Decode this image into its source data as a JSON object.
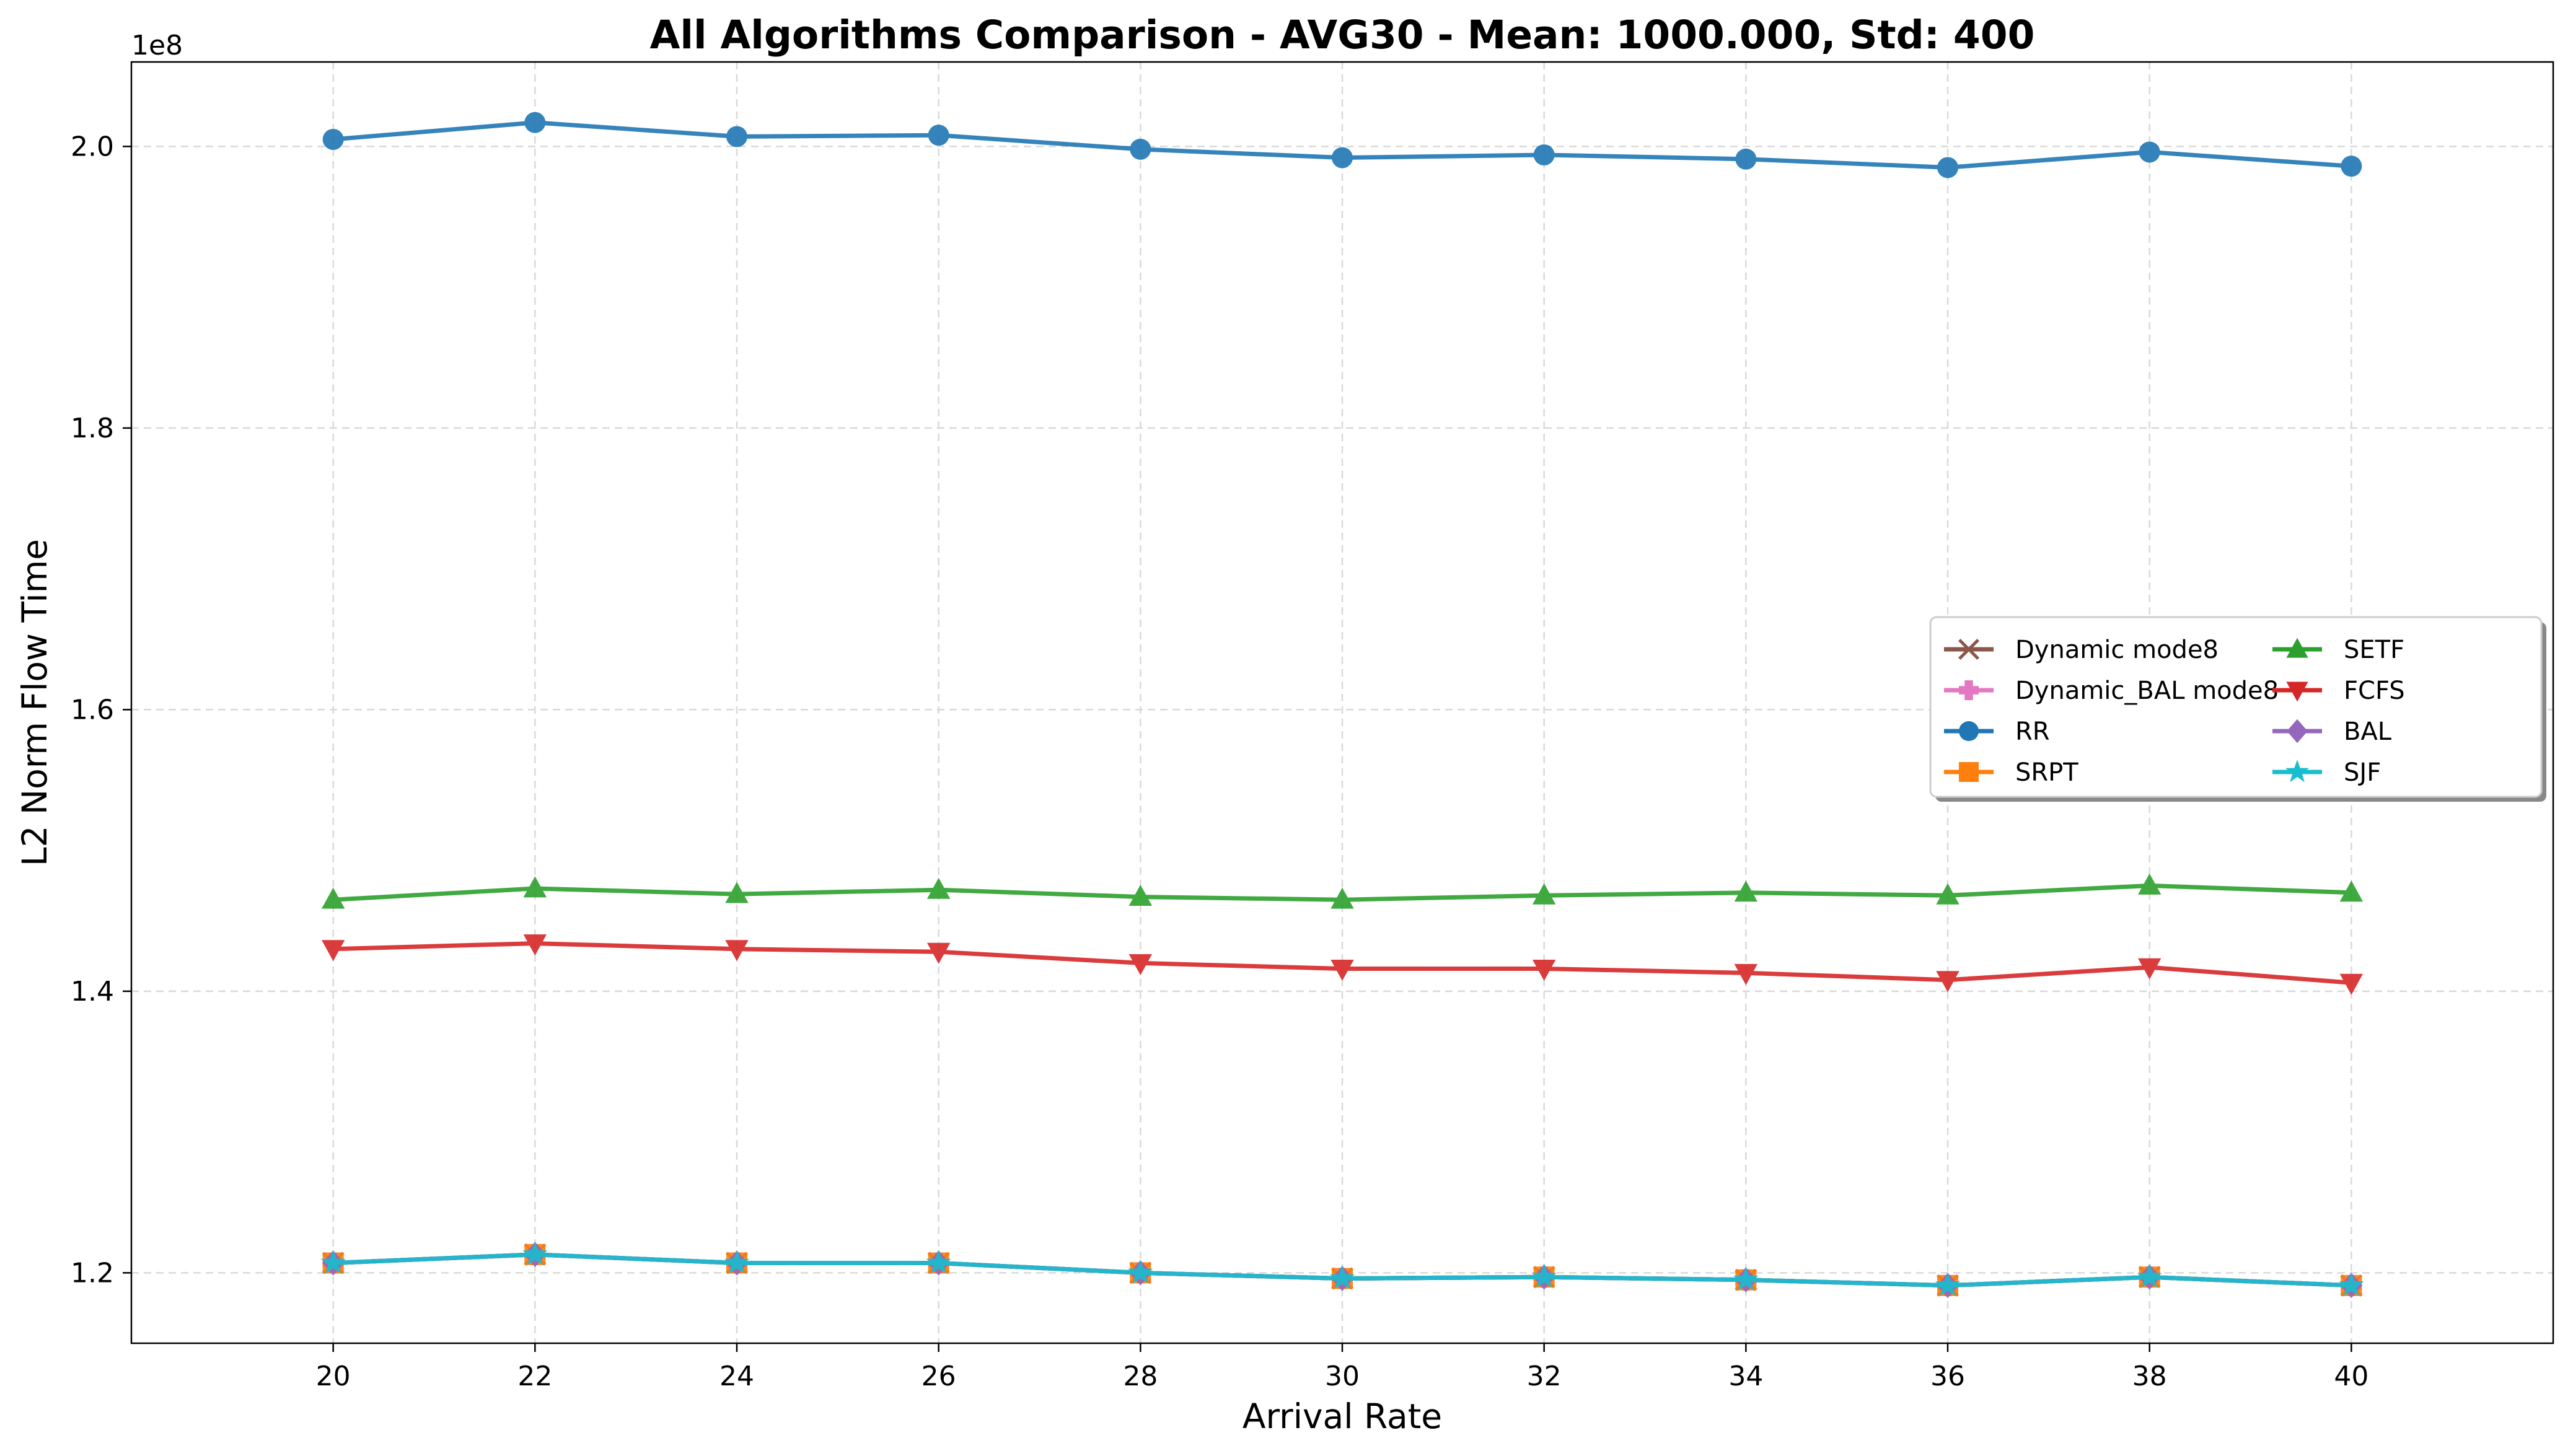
{
  "chart_data": {
    "type": "line",
    "title": "All Algorithms Comparison - AVG30 - Mean: 1000.000, Std: 400",
    "xlabel": "Arrival Rate",
    "ylabel": "L2 Norm Flow Time",
    "y_offset_label": "1e8",
    "x": [
      20,
      22,
      24,
      26,
      28,
      30,
      32,
      34,
      36,
      38,
      40
    ],
    "x_ticks": [
      "20",
      "22",
      "24",
      "26",
      "28",
      "30",
      "32",
      "34",
      "36",
      "38",
      "40"
    ],
    "xlim": [
      18,
      42
    ],
    "y_ticks": [
      1.2,
      1.4,
      1.6,
      1.8,
      2.0
    ],
    "y_tick_labels": [
      "1.2",
      "1.4",
      "1.6",
      "1.8",
      "2.0"
    ],
    "ylim": [
      1.15,
      2.06
    ],
    "y_scale_note": "values in units of 1e8",
    "grid": true,
    "legend_position": "center-right",
    "legend_columns": 2,
    "series": [
      {
        "name": "Dynamic mode8",
        "color": "#8c564b",
        "marker": "x",
        "values": [
          1.207,
          1.213,
          1.207,
          1.207,
          1.2,
          1.196,
          1.197,
          1.195,
          1.191,
          1.197,
          1.191
        ]
      },
      {
        "name": "Dynamic_BAL mode8",
        "color": "#e377c2",
        "marker": "plus-filled",
        "values": [
          1.207,
          1.213,
          1.207,
          1.207,
          1.2,
          1.196,
          1.197,
          1.195,
          1.191,
          1.197,
          1.191
        ]
      },
      {
        "name": "RR",
        "color": "#1f77b4",
        "marker": "circle",
        "values": [
          2.005,
          2.017,
          2.007,
          2.008,
          1.998,
          1.992,
          1.994,
          1.991,
          1.985,
          1.996,
          1.986
        ]
      },
      {
        "name": "SRPT",
        "color": "#ff7f0e",
        "marker": "square",
        "values": [
          1.207,
          1.213,
          1.207,
          1.207,
          1.2,
          1.196,
          1.197,
          1.195,
          1.191,
          1.197,
          1.191
        ]
      },
      {
        "name": "SETF",
        "color": "#2ca02c",
        "marker": "triangle-up",
        "values": [
          1.465,
          1.473,
          1.469,
          1.472,
          1.467,
          1.465,
          1.468,
          1.47,
          1.468,
          1.475,
          1.47
        ]
      },
      {
        "name": "FCFS",
        "color": "#d62728",
        "marker": "triangle-down",
        "values": [
          1.43,
          1.434,
          1.43,
          1.428,
          1.42,
          1.416,
          1.416,
          1.413,
          1.408,
          1.417,
          1.406
        ]
      },
      {
        "name": "BAL",
        "color": "#9467bd",
        "marker": "diamond",
        "values": [
          1.207,
          1.213,
          1.207,
          1.207,
          1.2,
          1.196,
          1.197,
          1.195,
          1.191,
          1.197,
          1.191
        ]
      },
      {
        "name": "SJF",
        "color": "#17becf",
        "marker": "star",
        "values": [
          1.207,
          1.213,
          1.207,
          1.207,
          1.2,
          1.196,
          1.197,
          1.195,
          1.191,
          1.197,
          1.191
        ]
      }
    ],
    "legend_order": [
      "Dynamic mode8",
      "Dynamic_BAL mode8",
      "RR",
      "SRPT",
      "SETF",
      "FCFS",
      "BAL",
      "SJF"
    ]
  }
}
